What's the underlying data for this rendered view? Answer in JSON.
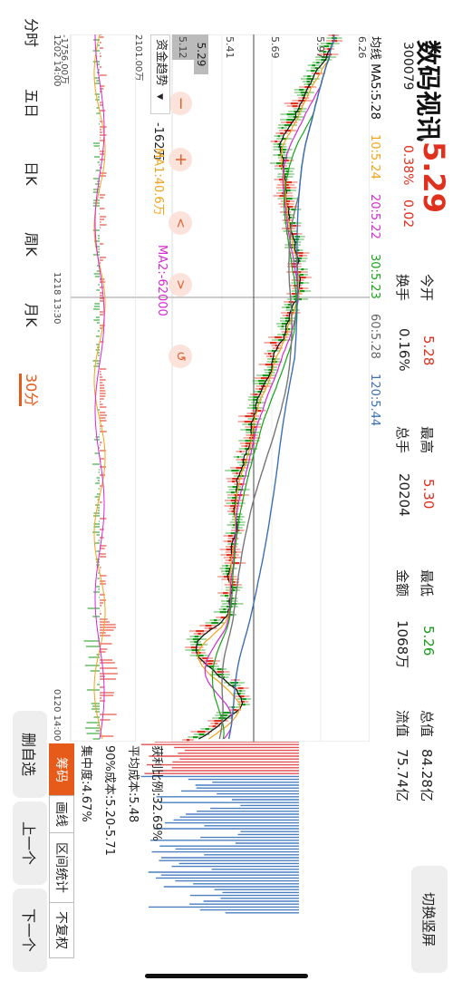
{
  "header": {
    "stock_name": "数码视讯",
    "code": "300079",
    "price": "5.29",
    "change_pct": "0.38%",
    "change_amt": "0.02",
    "switch_button": "切换竖屏"
  },
  "quote": {
    "open_label": "今开",
    "open_value": "5.28",
    "turnover_label": "换手",
    "turnover_value": "0.16%",
    "high_label": "最高",
    "high_value": "5.30",
    "volume_label": "总手",
    "volume_value": "20204",
    "low_label": "最低",
    "low_value": "5.26",
    "amount_label": "金额",
    "amount_value": "1068万",
    "mktcap_label": "总值",
    "mktcap_value": "84.28亿",
    "float_label": "流值",
    "float_value": "75.74亿"
  },
  "ma_legend": {
    "prefix": "均线 MA5:5.28",
    "ma10": "10:5.24",
    "ma20": "20:5.22",
    "ma30": "30:5.23",
    "ma60": "60:5.28",
    "ma120": "120:5.44"
  },
  "price_axis": [
    "6.26",
    "5.97",
    "5.69",
    "5.41",
    "5.12"
  ],
  "current_price_tag": "5.29",
  "time_axis": {
    "left": "1202 14:00",
    "mid": "1218 13:30",
    "right": "0120 14:00"
  },
  "fund_panel": {
    "selector": "资金趋势",
    "selector_icon": "dropdown-triangle-icon",
    "value": "-162万",
    "ma1": "MA1:40.6万",
    "ma2": "MA2:-62000",
    "axis_top": "2101.00万",
    "axis_bottom": "-1756.00万"
  },
  "tabs": [
    "分时",
    "五日",
    "日K",
    "周K",
    "月K",
    "30分"
  ],
  "active_tab": "30分",
  "chip": {
    "tabs": [
      "筹码",
      "画线",
      "区间统计",
      "不复权"
    ],
    "profit_ratio": "获利比例:32.69%",
    "avg_cost": "平均成本:5.48",
    "cost_90": "90%成本:5.20-5.71",
    "concentration": "集中度:4.67%"
  },
  "side_buttons": [
    "删自选",
    "上一个",
    "下一个"
  ],
  "colors": {
    "up": "#e0301e",
    "down": "#1a9a1a",
    "ma5": "#111111",
    "ma10": "#f2a31b",
    "ma20": "#d32ad3",
    "ma30": "#19a319",
    "ma60": "#777777",
    "ma120": "#3d6fb5",
    "chip_red": "#e05050",
    "chip_blue": "#4a7fc0",
    "accent": "#e65a1a"
  }
}
